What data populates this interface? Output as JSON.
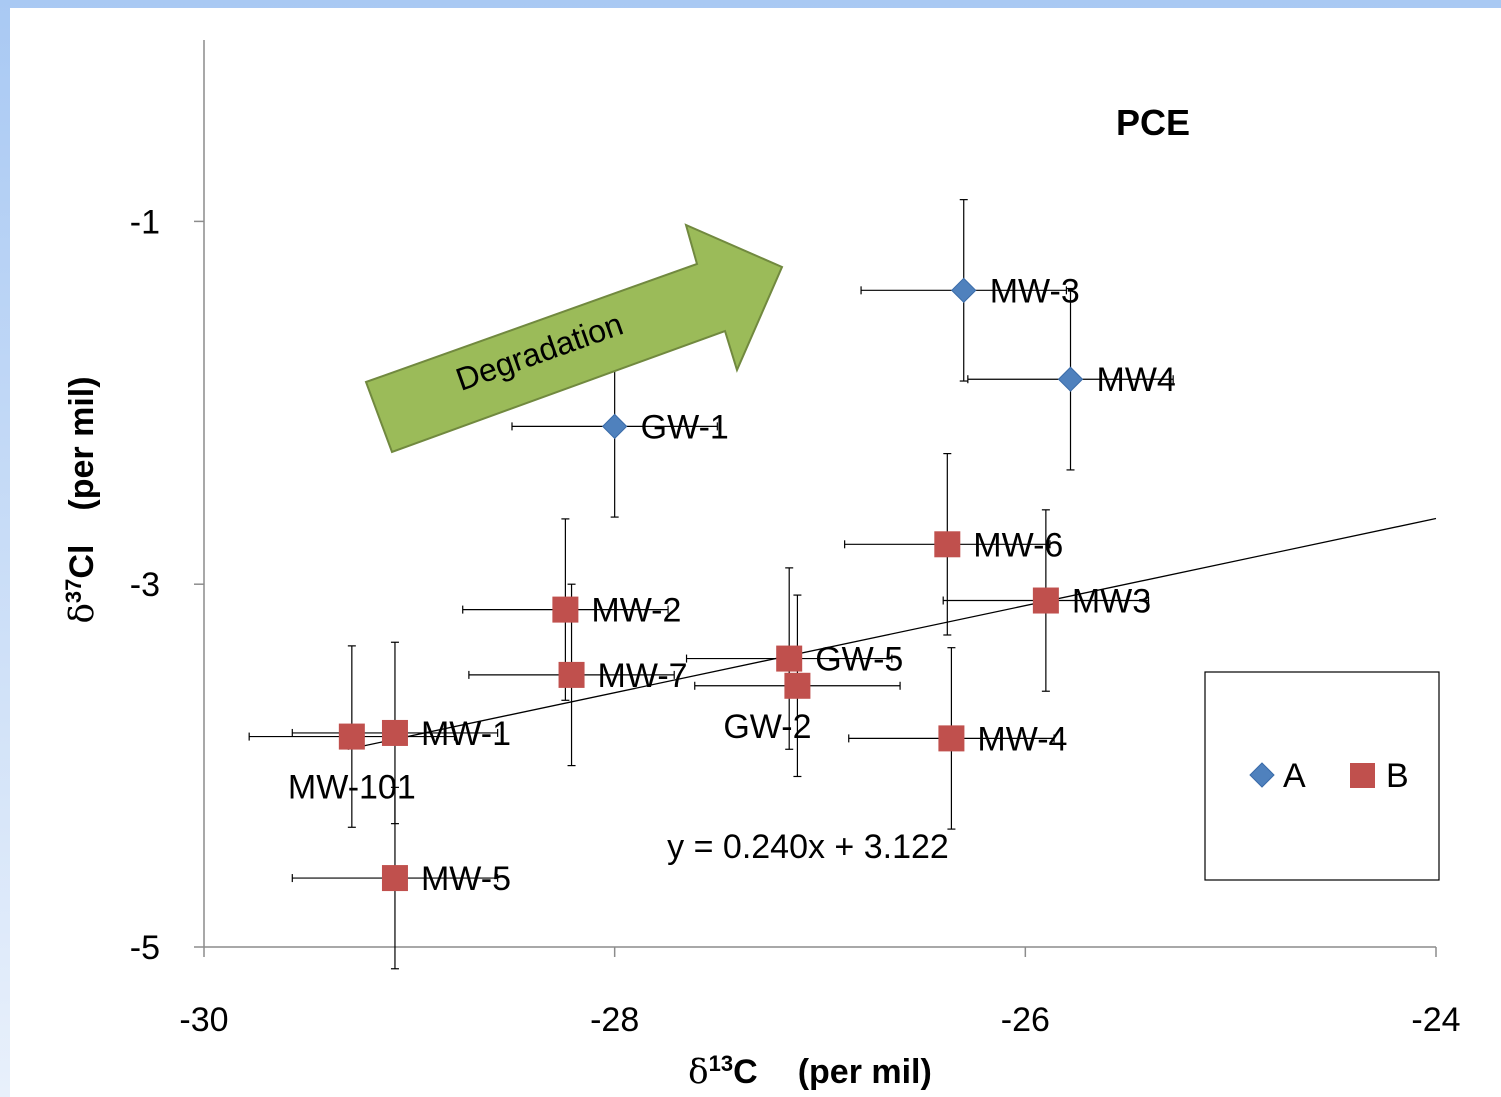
{
  "chart_data": {
    "type": "scatter",
    "title": "PCE",
    "xlabel_greek": "δ",
    "xlabel_sup": "13",
    "xlabel_elem": "C",
    "xlabel_unit": "(per mil)",
    "ylabel_greek": "δ",
    "ylabel_sup": "37",
    "ylabel_elem": "Cl",
    "ylabel_unit": "(per mil)",
    "xlim": [
      -30,
      -24
    ],
    "ylim": [
      -5,
      0
    ],
    "xticks": [
      "-30",
      "-28",
      "-26",
      "-24"
    ],
    "yticks": [
      "-1",
      "-3",
      "-5"
    ],
    "xtick_values": [
      -30,
      -28,
      -26,
      -24
    ],
    "ytick_values": [
      -1,
      -3,
      -5
    ],
    "grid": false,
    "legend_position": "right",
    "series": [
      {
        "name": "A",
        "marker": "diamond",
        "color": "#4F81BD",
        "points": [
          {
            "label": "MW-3",
            "x": -26.3,
            "y": -1.38,
            "xerr": 0.5,
            "yerr": 0.5
          },
          {
            "label": "MW4",
            "x": -25.78,
            "y": -1.87,
            "xerr": 0.5,
            "yerr": 0.5
          },
          {
            "label": "GW-1",
            "x": -28.0,
            "y": -2.13,
            "xerr": 0.5,
            "yerr": 0.5
          }
        ]
      },
      {
        "name": "B",
        "marker": "square",
        "color": "#C0504D",
        "points": [
          {
            "label": "MW-6",
            "x": -26.38,
            "y": -2.78,
            "xerr": 0.5,
            "yerr": 0.5
          },
          {
            "label": "MW3",
            "x": -25.9,
            "y": -3.09,
            "xerr": 0.5,
            "yerr": 0.5
          },
          {
            "label": "MW-2",
            "x": -28.24,
            "y": -3.14,
            "xerr": 0.5,
            "yerr": 0.5
          },
          {
            "label": "MW-7",
            "x": -28.21,
            "y": -3.5,
            "xerr": 0.5,
            "yerr": 0.5
          },
          {
            "label": "GW-5",
            "x": -27.15,
            "y": -3.41,
            "xerr": 0.5,
            "yerr": 0.5
          },
          {
            "label": "GW-2",
            "x": -27.11,
            "y": -3.56,
            "xerr": 0.5,
            "yerr": 0.5
          },
          {
            "label": "MW-4",
            "x": -26.36,
            "y": -3.85,
            "xerr": 0.5,
            "yerr": 0.5
          },
          {
            "label": "MW-1",
            "x": -29.07,
            "y": -3.82,
            "xerr": 0.5,
            "yerr": 0.5
          },
          {
            "label": "MW-101",
            "x": -29.28,
            "y": -3.84,
            "xerr": 0.5,
            "yerr": 0.5
          },
          {
            "label": "MW-5",
            "x": -29.07,
            "y": -4.62,
            "xerr": 0.5,
            "yerr": 0.5
          }
        ]
      }
    ],
    "trendline": {
      "equation": "y = 0.240x + 3.122",
      "slope": 0.24,
      "intercept": 3.122,
      "x_range": [
        -29.3,
        -24.0
      ]
    },
    "annotation": {
      "text": "Degradation",
      "fill": "#9BBB59",
      "stroke": "#71893F"
    },
    "colors": {
      "background_gradient_top": "#A9C9F3",
      "background_gradient_bottom": "#E8F0FB",
      "plot_background": "#FFFFFF"
    }
  }
}
